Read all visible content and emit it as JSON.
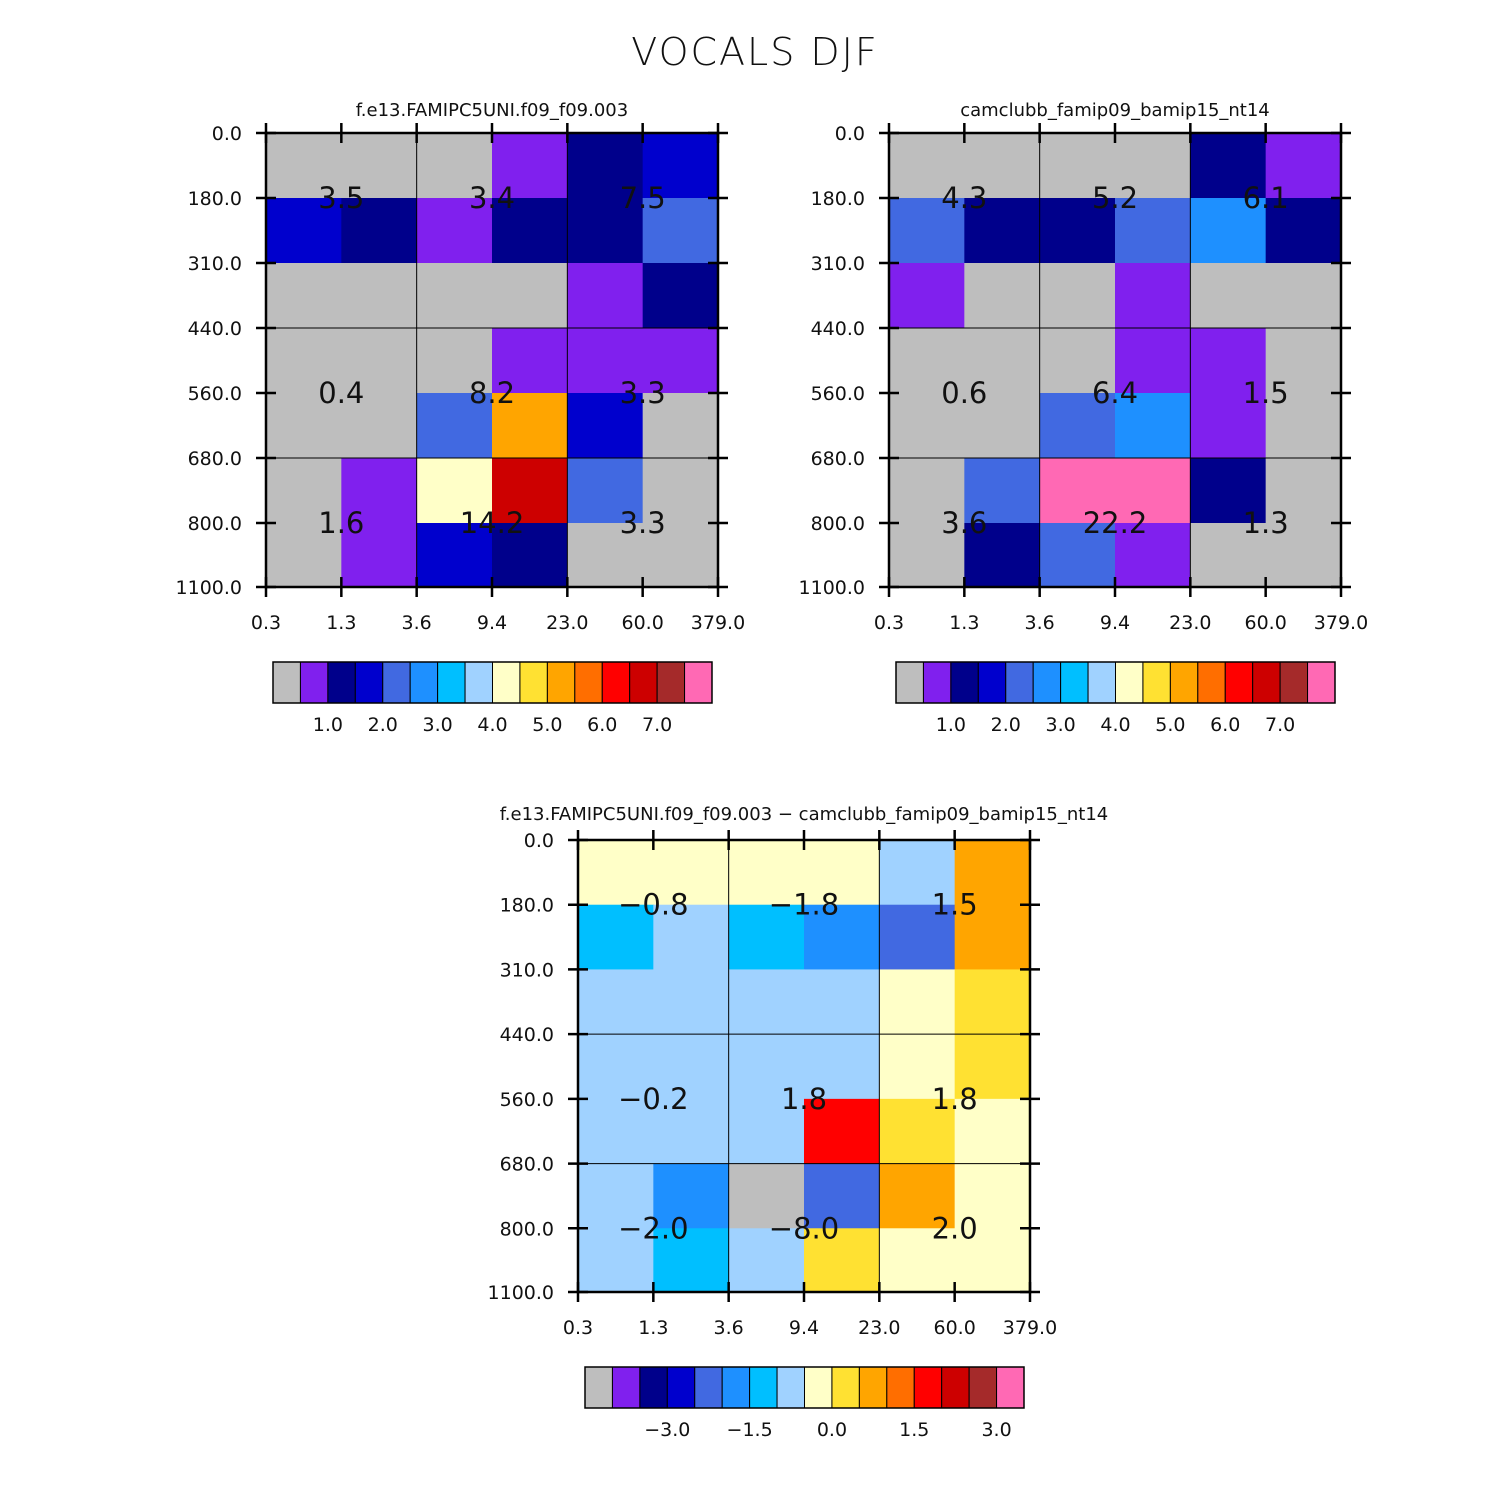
{
  "page": {
    "title": "VOCALS DJF"
  },
  "chart_data": [
    {
      "type": "heatmap",
      "title": "f.e13.FAMIPC5UNI.f09_f09.003",
      "x_ticks": [
        "0.3",
        "1.3",
        "3.6",
        "9.4",
        "23.0",
        "60.0",
        "379.0"
      ],
      "y_ticks": [
        "0.0",
        "180.0",
        "310.0",
        "440.0",
        "560.0",
        "680.0",
        "800.0",
        "1100.0"
      ],
      "cell_colors": [
        [
          "#bebebe",
          "#bebebe",
          "#bebebe",
          "#8020ee",
          "#00008b",
          "#0000cd"
        ],
        [
          "#0000cd",
          "#00008b",
          "#8020ee",
          "#00008b",
          "#00008b",
          "#4169e1"
        ],
        [
          "#bebebe",
          "#bebebe",
          "#bebebe",
          "#bebebe",
          "#8020ee",
          "#00008b"
        ],
        [
          "#bebebe",
          "#bebebe",
          "#bebebe",
          "#8020ee",
          "#8020ee",
          "#8020ee"
        ],
        [
          "#bebebe",
          "#bebebe",
          "#4169e1",
          "#ffa500",
          "#0000cd",
          "#bebebe"
        ],
        [
          "#bebebe",
          "#8020ee",
          "#ffffc8",
          "#cd0000",
          "#4169e1",
          "#bebebe"
        ],
        [
          "#bebebe",
          "#8020ee",
          "#0000cd",
          "#00008b",
          "#bebebe",
          "#bebebe"
        ]
      ],
      "cell_labels": [
        [
          "3.5",
          "3.4",
          "7.5"
        ],
        [
          "0.4",
          "8.2",
          "3.3"
        ],
        [
          "1.6",
          "14.2",
          "3.3"
        ]
      ],
      "colorbar": {
        "colors": [
          "#bebebe",
          "#8020ee",
          "#00008b",
          "#0000cd",
          "#4169e1",
          "#1e90ff",
          "#00bfff",
          "#a0d2ff",
          "#ffffc8",
          "#ffe132",
          "#ffa500",
          "#ff6e00",
          "#ff0000",
          "#cd0000",
          "#a52a2a",
          "#ff69b4"
        ],
        "labels": [
          "1.0",
          "2.0",
          "3.0",
          "4.0",
          "5.0",
          "6.0",
          "7.0"
        ]
      }
    },
    {
      "type": "heatmap",
      "title": "camclubb_famip09_bamip15_nt14",
      "x_ticks": [
        "0.3",
        "1.3",
        "3.6",
        "9.4",
        "23.0",
        "60.0",
        "379.0"
      ],
      "y_ticks": [
        "0.0",
        "180.0",
        "310.0",
        "440.0",
        "560.0",
        "680.0",
        "800.0",
        "1100.0"
      ],
      "cell_colors": [
        [
          "#bebebe",
          "#bebebe",
          "#bebebe",
          "#bebebe",
          "#00008b",
          "#8020ee"
        ],
        [
          "#4169e1",
          "#00008b",
          "#00008b",
          "#4169e1",
          "#1e90ff",
          "#00008b"
        ],
        [
          "#8020ee",
          "#bebebe",
          "#bebebe",
          "#8020ee",
          "#bebebe",
          "#bebebe"
        ],
        [
          "#bebebe",
          "#bebebe",
          "#bebebe",
          "#8020ee",
          "#8020ee",
          "#bebebe"
        ],
        [
          "#bebebe",
          "#bebebe",
          "#4169e1",
          "#1e90ff",
          "#8020ee",
          "#bebebe"
        ],
        [
          "#bebebe",
          "#4169e1",
          "#ff69b4",
          "#ff69b4",
          "#00008b",
          "#bebebe"
        ],
        [
          "#bebebe",
          "#00008b",
          "#4169e1",
          "#8020ee",
          "#bebebe",
          "#bebebe"
        ]
      ],
      "cell_labels": [
        [
          "4.3",
          "5.2",
          "6.1"
        ],
        [
          "0.6",
          "6.4",
          "1.5"
        ],
        [
          "3.6",
          "22.2",
          "1.3"
        ]
      ],
      "colorbar": {
        "colors": [
          "#bebebe",
          "#8020ee",
          "#00008b",
          "#0000cd",
          "#4169e1",
          "#1e90ff",
          "#00bfff",
          "#a0d2ff",
          "#ffffc8",
          "#ffe132",
          "#ffa500",
          "#ff6e00",
          "#ff0000",
          "#cd0000",
          "#a52a2a",
          "#ff69b4"
        ],
        "labels": [
          "1.0",
          "2.0",
          "3.0",
          "4.0",
          "5.0",
          "6.0",
          "7.0"
        ]
      }
    },
    {
      "type": "heatmap",
      "title": "f.e13.FAMIPC5UNI.f09_f09.003 − camclubb_famip09_bamip15_nt14",
      "x_ticks": [
        "0.3",
        "1.3",
        "3.6",
        "9.4",
        "23.0",
        "60.0",
        "379.0"
      ],
      "y_ticks": [
        "0.0",
        "180.0",
        "310.0",
        "440.0",
        "560.0",
        "680.0",
        "800.0",
        "1100.0"
      ],
      "cell_colors": [
        [
          "#ffffc8",
          "#ffffc8",
          "#ffffc8",
          "#ffffc8",
          "#a0d2ff",
          "#ffa500"
        ],
        [
          "#00bfff",
          "#a0d2ff",
          "#00bfff",
          "#1e90ff",
          "#4169e1",
          "#ffa500"
        ],
        [
          "#a0d2ff",
          "#a0d2ff",
          "#a0d2ff",
          "#a0d2ff",
          "#ffffc8",
          "#ffe132"
        ],
        [
          "#a0d2ff",
          "#a0d2ff",
          "#a0d2ff",
          "#a0d2ff",
          "#ffffc8",
          "#ffe132"
        ],
        [
          "#a0d2ff",
          "#a0d2ff",
          "#a0d2ff",
          "#ff0000",
          "#ffe132",
          "#ffffc8"
        ],
        [
          "#a0d2ff",
          "#1e90ff",
          "#bebebe",
          "#4169e1",
          "#ffa500",
          "#ffffc8"
        ],
        [
          "#a0d2ff",
          "#00bfff",
          "#a0d2ff",
          "#ffe132",
          "#ffffc8",
          "#ffffc8"
        ]
      ],
      "cell_labels": [
        [
          "−0.8",
          "−1.8",
          "1.5"
        ],
        [
          "−0.2",
          "1.8",
          "1.8"
        ],
        [
          "−2.0",
          "−8.0",
          "2.0"
        ]
      ],
      "colorbar": {
        "colors": [
          "#bebebe",
          "#8020ee",
          "#00008b",
          "#0000cd",
          "#4169e1",
          "#1e90ff",
          "#00bfff",
          "#a0d2ff",
          "#ffffc8",
          "#ffe132",
          "#ffa500",
          "#ff6e00",
          "#ff0000",
          "#cd0000",
          "#a52a2a",
          "#ff69b4"
        ],
        "labels": [
          "−3.0",
          "−1.5",
          "0.0",
          "1.5",
          "3.0"
        ]
      }
    }
  ]
}
